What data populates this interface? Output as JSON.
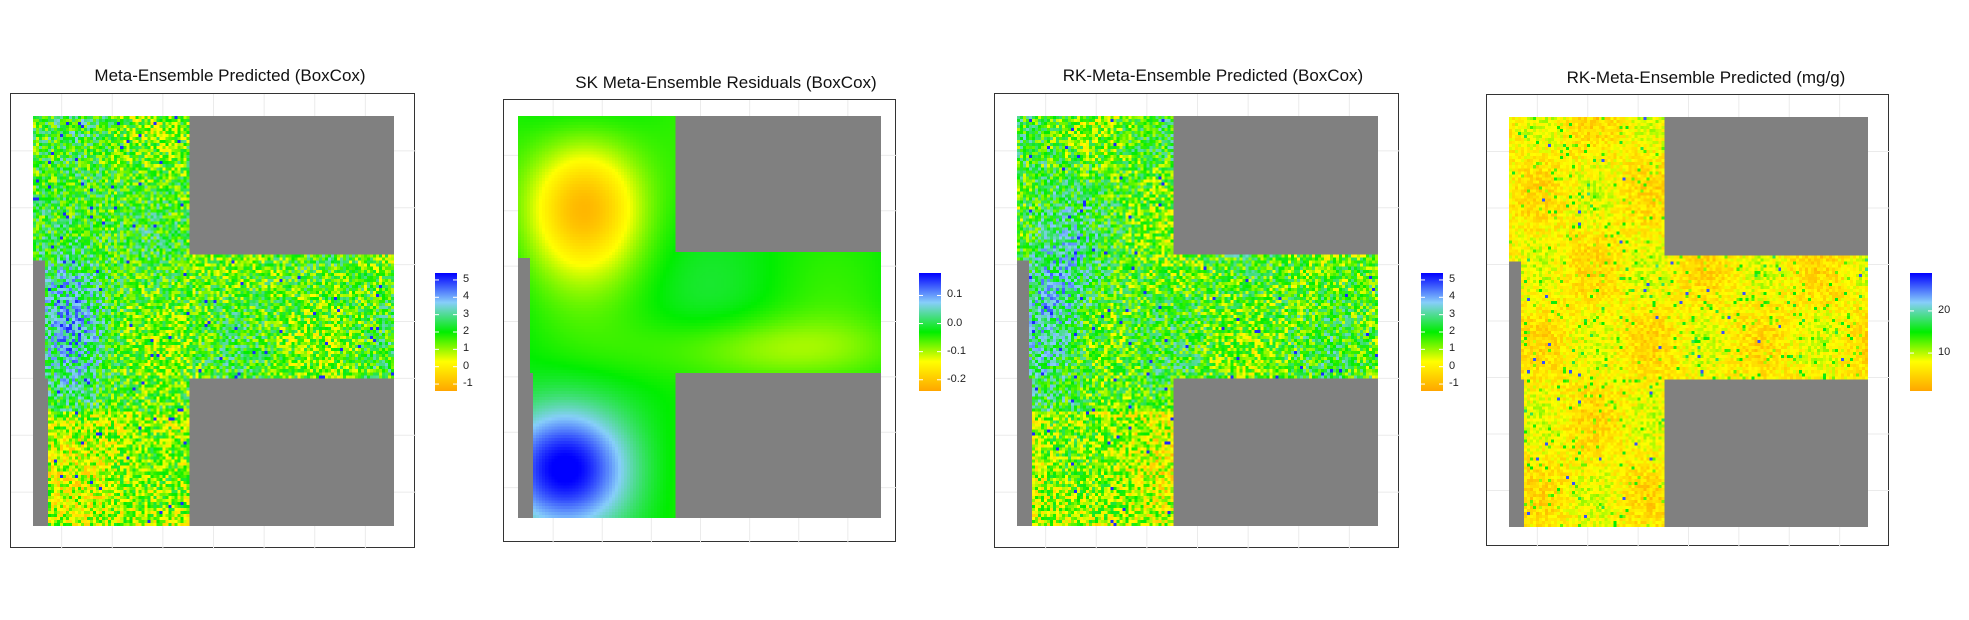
{
  "colors": {
    "missing": "#808080",
    "frame": "#333333",
    "grid": "#ebebeb",
    "scale_low": "#ffa500",
    "scale_low_mid": "#ffff00",
    "scale_mid": "#00ee00",
    "scale_high_mid": "#87cefa",
    "scale_high": "#0000ff"
  },
  "chart_data": [
    {
      "type": "heatmap",
      "title": "Meta-Ensemble Predicted (BoxCox)",
      "legend": {
        "position": "right",
        "ticks": [
          "5",
          "4",
          "3",
          "2",
          "1",
          "0",
          "-1"
        ],
        "range": [
          -1.4,
          5.4
        ]
      },
      "pattern": "noisy",
      "grid": false
    },
    {
      "type": "heatmap",
      "title": "SK Meta-Ensemble Residuals (BoxCox)",
      "legend": {
        "position": "right",
        "ticks": [
          "0.1",
          "0.0",
          "-0.1",
          "-0.2"
        ],
        "range": [
          -0.24,
          0.18
        ]
      },
      "pattern": "smooth",
      "grid": false
    },
    {
      "type": "heatmap",
      "title": "RK-Meta-Ensemble Predicted (BoxCox)",
      "legend": {
        "position": "right",
        "ticks": [
          "5",
          "4",
          "3",
          "2",
          "1",
          "0",
          "-1"
        ],
        "range": [
          -1.4,
          5.4
        ]
      },
      "pattern": "noisy",
      "grid": false
    },
    {
      "type": "heatmap",
      "title": "RK-Meta-Ensemble Predicted (mg/g)",
      "legend": {
        "position": "right",
        "ticks": [
          "20",
          "10"
        ],
        "range": [
          1,
          29
        ]
      },
      "pattern": "noisy-low",
      "grid": false
    }
  ]
}
